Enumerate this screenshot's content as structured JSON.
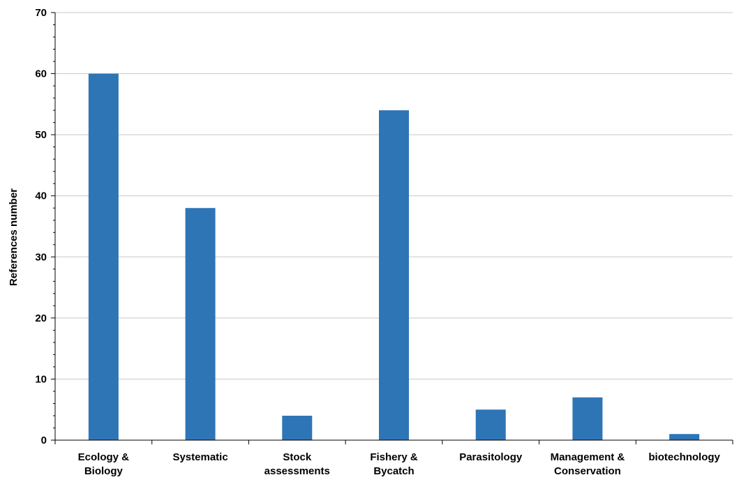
{
  "chart_data": {
    "type": "bar",
    "title": "",
    "xlabel": "",
    "ylabel": "References number",
    "ylim": [
      0,
      70
    ],
    "y_ticks": [
      "0",
      "10",
      "20",
      "30",
      "40",
      "50",
      "60",
      "70"
    ],
    "grid": true,
    "legend": "none",
    "categories": [
      [
        "Ecology &",
        "Biology"
      ],
      [
        "Systematic"
      ],
      [
        "Stock",
        "assessments"
      ],
      [
        "Fishery &",
        "Bycatch"
      ],
      [
        "Parasitology"
      ],
      [
        "Management &",
        "Conservation"
      ],
      [
        "biotechnology"
      ]
    ],
    "values": [
      60,
      38,
      4,
      54,
      5,
      7,
      1
    ],
    "bar_color": "#2e75b6",
    "grid_color": "#c8c8c8",
    "axis_color": "#000000"
  }
}
